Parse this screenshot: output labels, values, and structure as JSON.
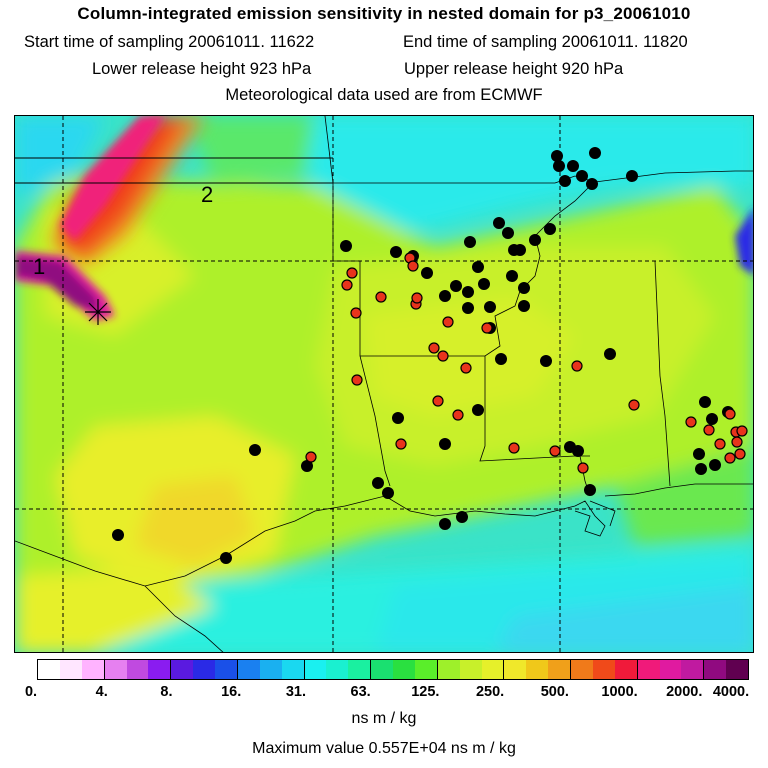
{
  "header": {
    "title": "Column-integrated emission sensitivity in nested domain for p3_20061010",
    "start_label": "Start time of sampling 20061011. 11622",
    "end_label": "End time of sampling 20061011. 11820",
    "lower_label": "Lower release height  923 hPa",
    "upper_label": "Upper release height  920 hPa",
    "met_label": "Meteorological data used are from ECMWF"
  },
  "map": {
    "label_1": "1",
    "label_2": "2",
    "release_marker_icon": "asterisk-icon",
    "colors": {
      "background": "#33e0c8",
      "coast": "#000000",
      "station_black": "#000000",
      "station_red": "#e8341c"
    }
  },
  "colorbar": {
    "ticks": [
      "0.",
      "4.",
      "8.",
      "16.",
      "31.",
      "63.",
      "125.",
      "250.",
      "500.",
      "1000.",
      "2000.",
      "4000."
    ],
    "colors": [
      "#ffffff",
      "#ffe6ff",
      "#ffb3ff",
      "#e680f0",
      "#c04ae0",
      "#8a1cf0",
      "#5a1ae0",
      "#2a2ae6",
      "#1a50e8",
      "#1a80f0",
      "#1ab0f0",
      "#1ad8f0",
      "#1af0f0",
      "#1af0d0",
      "#1af0a0",
      "#1ae070",
      "#2ae040",
      "#5aee2a",
      "#9ef02a",
      "#c8f02a",
      "#e6f02a",
      "#f0e82a",
      "#f0c81a",
      "#f0a01a",
      "#f07a1a",
      "#f04a1a",
      "#f01a3a",
      "#f01a7a",
      "#e01aa0",
      "#c01aa0",
      "#900a80",
      "#600050"
    ],
    "unit": "ns m / kg",
    "max_label": "Maximum value  0.557E+04 ns m / kg"
  }
}
